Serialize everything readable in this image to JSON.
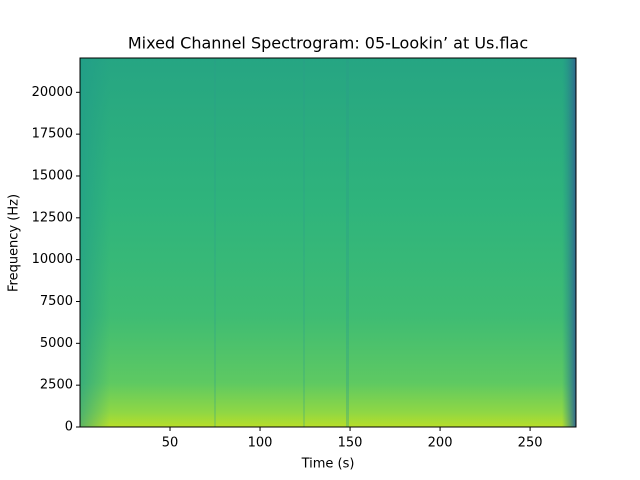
{
  "chart_data": {
    "type": "spectrogram",
    "title": "Mixed Channel Spectrogram: 05-Lookin’ at Us.flac",
    "x_label": "Time (s)",
    "y_label": "Frequency (Hz)",
    "xlim": [
      0,
      275.5
    ],
    "xticks": [
      50,
      100,
      150,
      200,
      250
    ],
    "ylim": [
      0,
      22050
    ],
    "yticks": [
      0,
      2500,
      5000,
      7500,
      10000,
      12500,
      15000,
      17500,
      20000
    ]
  }
}
